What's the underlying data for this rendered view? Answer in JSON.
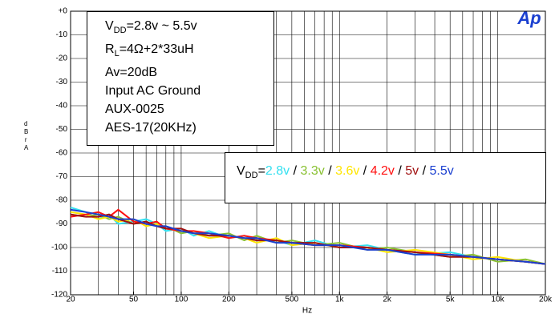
{
  "chart_data": {
    "type": "line",
    "log_x": true,
    "grid": true,
    "xlabel": "Hz",
    "ylabel": "dBr A",
    "logo": "Ap",
    "annotation_lines": [
      [
        "V",
        "DD",
        "=2.8v ~ 5.5v"
      ],
      [
        "R",
        "L",
        "=4Ω+2*33uH"
      ],
      [
        "Av=20dB"
      ],
      [
        "Input AC Ground"
      ],
      [
        "AUX-0025"
      ],
      [
        "AES-17(20KHz)"
      ]
    ],
    "legend_prefix": [
      "V",
      "DD",
      "="
    ],
    "legend_separator": " / ",
    "xlim": [
      20,
      20000
    ],
    "ylim": [
      -120,
      0
    ],
    "xticks": [
      20,
      50,
      100,
      200,
      500,
      {
        "value": 1000,
        "label": "1k"
      },
      {
        "value": 2000,
        "label": "2k"
      },
      {
        "value": 5000,
        "label": "5k"
      },
      {
        "value": 10000,
        "label": "10k"
      },
      {
        "value": 20000,
        "label": "20k"
      }
    ],
    "yticks": [
      {
        "value": 0,
        "label": "+0"
      },
      -10,
      -20,
      -30,
      -40,
      -50,
      -60,
      -70,
      -80,
      -90,
      -100,
      -110,
      -120
    ],
    "x": [
      20,
      25,
      30,
      35,
      40,
      50,
      60,
      70,
      80,
      100,
      120,
      150,
      200,
      250,
      300,
      400,
      500,
      700,
      1000,
      1500,
      2000,
      3000,
      5000,
      7000,
      10000,
      15000,
      20000
    ],
    "series": [
      {
        "name": "2.8v",
        "color": "#33e0f0",
        "values": [
          -83,
          -85,
          -88,
          -86,
          -90,
          -89,
          -88,
          -90,
          -93,
          -92,
          -95,
          -93,
          -96,
          -95,
          -97,
          -97,
          -99,
          -97,
          -100,
          -99,
          -101,
          -103,
          -102,
          -104,
          -105,
          -106,
          -107
        ]
      },
      {
        "name": "3.3v",
        "color": "#88c030",
        "values": [
          -86,
          -87,
          -86,
          -88,
          -87,
          -90,
          -89,
          -91,
          -91,
          -94,
          -93,
          -95,
          -94,
          -97,
          -95,
          -98,
          -97,
          -99,
          -98,
          -101,
          -100,
          -102,
          -104,
          -103,
          -106,
          -105,
          -107
        ]
      },
      {
        "name": "3.6v",
        "color": "#ffe600",
        "values": [
          -85,
          -86,
          -88,
          -87,
          -89,
          -88,
          -91,
          -90,
          -92,
          -93,
          -94,
          -96,
          -95,
          -96,
          -98,
          -96,
          -99,
          -98,
          -100,
          -100,
          -102,
          -101,
          -103,
          -105,
          -104,
          -106,
          -107
        ]
      },
      {
        "name": "4.2v",
        "color": "#ff1010",
        "values": [
          -87,
          -86,
          -85,
          -87,
          -84,
          -89,
          -90,
          -89,
          -92,
          -93,
          -93,
          -94,
          -96,
          -95,
          -96,
          -97,
          -98,
          -99,
          -99,
          -100,
          -101,
          -102,
          -103,
          -104,
          -105,
          -106,
          -107
        ]
      },
      {
        "name": "5v",
        "color": "#a01010",
        "values": [
          -86,
          -87,
          -87,
          -86,
          -88,
          -90,
          -89,
          -91,
          -92,
          -92,
          -94,
          -95,
          -95,
          -96,
          -97,
          -97,
          -98,
          -98,
          -100,
          -100,
          -101,
          -102,
          -104,
          -104,
          -105,
          -106,
          -107
        ]
      },
      {
        "name": "5.5v",
        "color": "#1a3fd0",
        "values": [
          -84,
          -85,
          -86,
          -87,
          -88,
          -88,
          -90,
          -91,
          -91,
          -93,
          -94,
          -94,
          -95,
          -96,
          -96,
          -98,
          -98,
          -99,
          -99,
          -101,
          -101,
          -103,
          -103,
          -104,
          -105,
          -106,
          -107
        ]
      }
    ]
  }
}
